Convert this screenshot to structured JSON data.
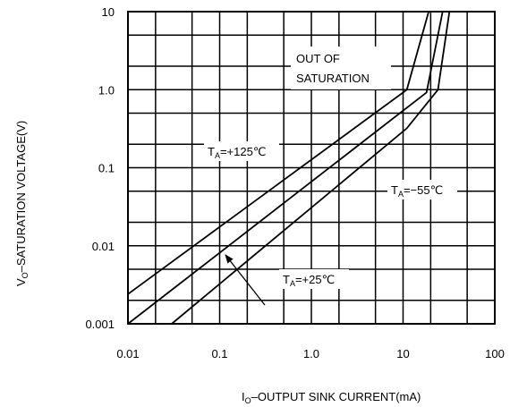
{
  "chart_data": {
    "type": "line",
    "xlabel": "I",
    "xlabel_sub": "O",
    "xlabel_rest": "–OUTPUT SINK CURRENT(mA)",
    "ylabel": "V",
    "ylabel_sub": "O",
    "ylabel_rest": "–SATURATION VOLTAGE(V)",
    "x_scale": "log",
    "y_scale": "log",
    "xlim": [
      0.01,
      100
    ],
    "ylim": [
      0.001,
      10
    ],
    "x_ticks": [
      {
        "value": 0.01,
        "label": "0.01"
      },
      {
        "value": 0.1,
        "label": "0.1"
      },
      {
        "value": 1,
        "label": "1.0"
      },
      {
        "value": 10,
        "label": "10"
      },
      {
        "value": 100,
        "label": "100"
      }
    ],
    "y_ticks": [
      {
        "value": 10,
        "label": "10"
      },
      {
        "value": 1,
        "label": "1.0"
      },
      {
        "value": 0.1,
        "label": "0.1"
      },
      {
        "value": 0.01,
        "label": "0.01"
      },
      {
        "value": 0.001,
        "label": "0.001"
      }
    ],
    "grid": true,
    "series": [
      {
        "name": "TA=+125°C",
        "x": [
          0.01,
          11,
          19
        ],
        "y": [
          0.0024,
          1.0,
          10
        ]
      },
      {
        "name": "TA=+25°C",
        "x": [
          0.01,
          18,
          27
        ],
        "y": [
          0.001,
          0.92,
          10
        ]
      },
      {
        "name": "TA=-55°C",
        "x": [
          0.03,
          11,
          24,
          32
        ],
        "y": [
          0.001,
          0.32,
          1.0,
          10
        ]
      }
    ],
    "annotations": {
      "region": [
        "OUT OF",
        "SATURATION"
      ],
      "t125": {
        "main": "T",
        "sub": "A",
        "rest": "=+125℃"
      },
      "t55": {
        "main": "T",
        "sub": "A",
        "rest": "=−55℃"
      },
      "t25": {
        "main": "T",
        "sub": "A",
        "rest": "=+25℃"
      }
    }
  }
}
